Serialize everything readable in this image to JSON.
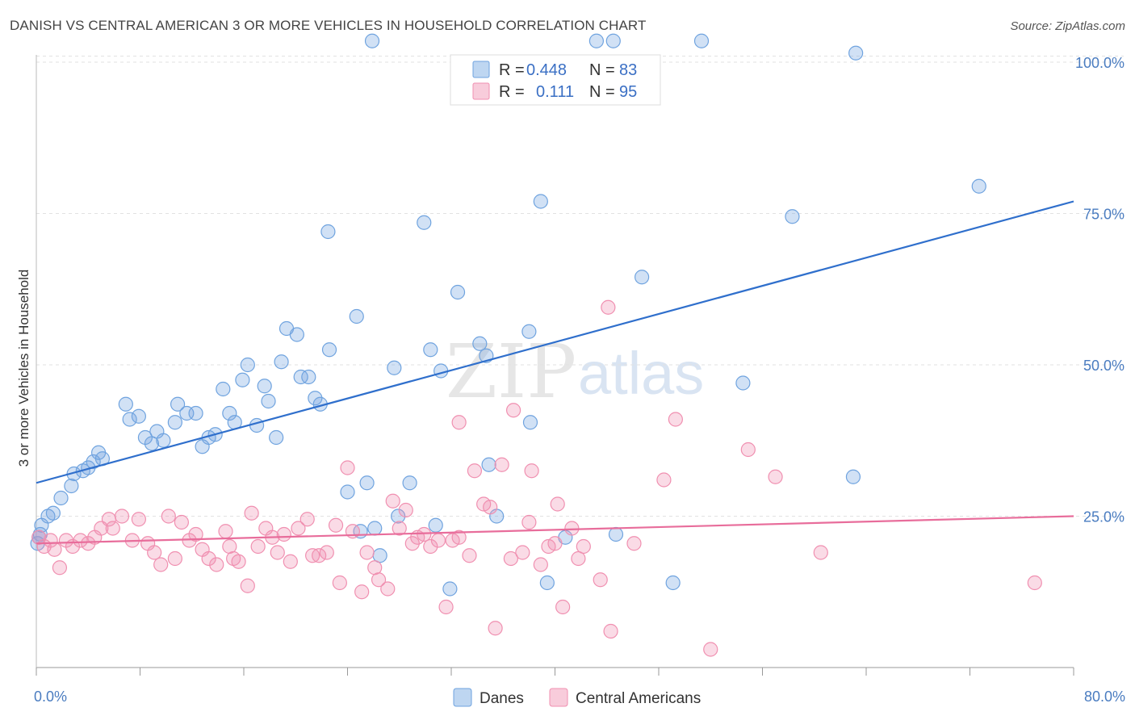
{
  "title": "DANISH VS CENTRAL AMERICAN 3 OR MORE VEHICLES IN HOUSEHOLD CORRELATION CHART",
  "source": "Source: ZipAtlas.com",
  "watermark": {
    "zip": "ZIP",
    "atlas": "atlas"
  },
  "chart_data": {
    "type": "scatter",
    "title": "DANISH VS CENTRAL AMERICAN 3 OR MORE VEHICLES IN HOUSEHOLD CORRELATION CHART",
    "xlabel": "",
    "ylabel": "3 or more Vehicles in Household",
    "xlim": [
      0,
      80
    ],
    "ylim": [
      0,
      102
    ],
    "x_tick_labels": [
      "0.0%",
      "80.0%"
    ],
    "y_ticks": [
      25,
      50,
      75,
      100
    ],
    "y_tick_labels": [
      "25.0%",
      "50.0%",
      "75.0%",
      "100.0%"
    ],
    "grid": "horizontal dashed",
    "legend_position": "top-center",
    "legend": [
      {
        "color": "#6fa3df",
        "r_label": "R =",
        "r": "0.448",
        "n_label": "N =",
        "n": "83"
      },
      {
        "color": "#f08fb0",
        "r_label": "R =",
        "r": "0.111",
        "n_label": "N =",
        "n": "95"
      }
    ],
    "series": [
      {
        "name": "Danes",
        "color": "#6fa3df",
        "line_color": "#2f6fcc",
        "trend": {
          "x": [
            0,
            80
          ],
          "y": [
            30.5,
            77
          ]
        },
        "points": [
          [
            0.2,
            21.5
          ],
          [
            0.4,
            23.5
          ],
          [
            0.9,
            25
          ],
          [
            1.3,
            25.5
          ],
          [
            1.9,
            28
          ],
          [
            2.7,
            30
          ],
          [
            2.9,
            32
          ],
          [
            3.6,
            32.5
          ],
          [
            4.0,
            33
          ],
          [
            4.4,
            34
          ],
          [
            4.8,
            35.5
          ],
          [
            5.1,
            34.5
          ],
          [
            6.9,
            43.5
          ],
          [
            7.2,
            41
          ],
          [
            7.9,
            41.5
          ],
          [
            8.4,
            38
          ],
          [
            8.9,
            37
          ],
          [
            9.3,
            39
          ],
          [
            9.8,
            37.5
          ],
          [
            10.7,
            40.5
          ],
          [
            10.9,
            43.5
          ],
          [
            11.6,
            42
          ],
          [
            12.3,
            42
          ],
          [
            12.8,
            36.5
          ],
          [
            13.3,
            38
          ],
          [
            13.8,
            38.5
          ],
          [
            14.4,
            46
          ],
          [
            14.9,
            42
          ],
          [
            15.3,
            40.5
          ],
          [
            15.9,
            47.5
          ],
          [
            16.3,
            50
          ],
          [
            17.0,
            40
          ],
          [
            17.6,
            46.5
          ],
          [
            17.9,
            44
          ],
          [
            18.5,
            38
          ],
          [
            18.9,
            50.5
          ],
          [
            19.3,
            56
          ],
          [
            20.1,
            55
          ],
          [
            20.4,
            48
          ],
          [
            21.0,
            48
          ],
          [
            21.5,
            44.5
          ],
          [
            21.9,
            43.5
          ],
          [
            22.6,
            52.5
          ],
          [
            22.5,
            72
          ],
          [
            24.0,
            29
          ],
          [
            24.7,
            58
          ],
          [
            25.0,
            22.5
          ],
          [
            25.5,
            30.5
          ],
          [
            25.9,
            103.5
          ],
          [
            26.1,
            23
          ],
          [
            26.5,
            18.5
          ],
          [
            27.6,
            49.5
          ],
          [
            27.9,
            25
          ],
          [
            28.8,
            30.5
          ],
          [
            29.9,
            73.5
          ],
          [
            30.4,
            52.5
          ],
          [
            30.8,
            23.5
          ],
          [
            31.2,
            49
          ],
          [
            31.9,
            13
          ],
          [
            32.5,
            62
          ],
          [
            34.2,
            53.5
          ],
          [
            34.7,
            51.5
          ],
          [
            34.9,
            33.5
          ],
          [
            35.5,
            25
          ],
          [
            37.8,
            97.5
          ],
          [
            38.0,
            55.5
          ],
          [
            38.1,
            40.5
          ],
          [
            38.9,
            77
          ],
          [
            39.4,
            14
          ],
          [
            40.8,
            21.5
          ],
          [
            43.2,
            103.5
          ],
          [
            44.5,
            103.5
          ],
          [
            44.7,
            22
          ],
          [
            46.7,
            64.5
          ],
          [
            49.1,
            14
          ],
          [
            51.3,
            103.5
          ],
          [
            54.5,
            47
          ],
          [
            58.3,
            74.5
          ],
          [
            63.2,
            101.5
          ],
          [
            63.0,
            31.5
          ],
          [
            72.7,
            79.5
          ],
          [
            0.1,
            20.5
          ],
          [
            0.3,
            22
          ]
        ]
      },
      {
        "name": "Central Americans",
        "color": "#f08fb0",
        "line_color": "#e86d9b",
        "trend": {
          "x": [
            0,
            80
          ],
          "y": [
            20.5,
            25
          ]
        },
        "points": [
          [
            0.2,
            21.5
          ],
          [
            0.6,
            20
          ],
          [
            1.1,
            21
          ],
          [
            1.4,
            19.5
          ],
          [
            1.8,
            16.5
          ],
          [
            2.3,
            21
          ],
          [
            2.8,
            20
          ],
          [
            3.4,
            21
          ],
          [
            4.0,
            20.5
          ],
          [
            4.5,
            21.5
          ],
          [
            5.0,
            23
          ],
          [
            5.6,
            24.5
          ],
          [
            5.9,
            23
          ],
          [
            6.6,
            25
          ],
          [
            7.4,
            21
          ],
          [
            7.9,
            24.5
          ],
          [
            8.6,
            20.5
          ],
          [
            9.1,
            19
          ],
          [
            9.6,
            17
          ],
          [
            10.2,
            25
          ],
          [
            10.7,
            18
          ],
          [
            11.2,
            24
          ],
          [
            11.8,
            21
          ],
          [
            12.3,
            22
          ],
          [
            12.8,
            19.5
          ],
          [
            13.3,
            18
          ],
          [
            13.9,
            17
          ],
          [
            14.6,
            22.5
          ],
          [
            14.9,
            20
          ],
          [
            15.2,
            18
          ],
          [
            15.6,
            17.5
          ],
          [
            16.3,
            13.5
          ],
          [
            16.6,
            25.5
          ],
          [
            17.1,
            20
          ],
          [
            17.7,
            23
          ],
          [
            18.2,
            21.5
          ],
          [
            18.6,
            19
          ],
          [
            19.1,
            22
          ],
          [
            19.6,
            17.5
          ],
          [
            20.2,
            23
          ],
          [
            20.9,
            24.5
          ],
          [
            21.3,
            18.5
          ],
          [
            21.8,
            18.5
          ],
          [
            22.4,
            19
          ],
          [
            23.1,
            23.5
          ],
          [
            23.4,
            14
          ],
          [
            24.0,
            33
          ],
          [
            24.4,
            22.5
          ],
          [
            25.1,
            12.5
          ],
          [
            25.5,
            19
          ],
          [
            26.1,
            16.5
          ],
          [
            26.4,
            14.5
          ],
          [
            27.1,
            13
          ],
          [
            27.5,
            27.5
          ],
          [
            28.0,
            23
          ],
          [
            28.5,
            26
          ],
          [
            29.0,
            20.5
          ],
          [
            29.4,
            21.5
          ],
          [
            29.9,
            22
          ],
          [
            30.4,
            20
          ],
          [
            31.0,
            21
          ],
          [
            31.6,
            10
          ],
          [
            32.1,
            21
          ],
          [
            32.6,
            21.5
          ],
          [
            33.4,
            18.5
          ],
          [
            33.8,
            32.5
          ],
          [
            34.5,
            27
          ],
          [
            35.0,
            26.5
          ],
          [
            35.4,
            6.5
          ],
          [
            35.9,
            33.5
          ],
          [
            36.6,
            18
          ],
          [
            37.5,
            19
          ],
          [
            38.0,
            24
          ],
          [
            38.2,
            32.5
          ],
          [
            38.9,
            17
          ],
          [
            39.5,
            20
          ],
          [
            40.0,
            20.5
          ],
          [
            40.2,
            27
          ],
          [
            40.6,
            10
          ],
          [
            41.3,
            23
          ],
          [
            41.8,
            18
          ],
          [
            42.2,
            20
          ],
          [
            43.5,
            14.5
          ],
          [
            44.1,
            59.5
          ],
          [
            44.3,
            6
          ],
          [
            46.1,
            20.5
          ],
          [
            48.4,
            31
          ],
          [
            49.3,
            41
          ],
          [
            52.0,
            3
          ],
          [
            54.9,
            36
          ],
          [
            57.0,
            31.5
          ],
          [
            60.5,
            19
          ],
          [
            77.0,
            14
          ],
          [
            32.6,
            40.5
          ],
          [
            36.8,
            42.5
          ]
        ]
      }
    ]
  },
  "bottom_legend": [
    {
      "label": "Danes",
      "color": "#6fa3df"
    },
    {
      "label": "Central Americans",
      "color": "#f08fb0"
    }
  ]
}
